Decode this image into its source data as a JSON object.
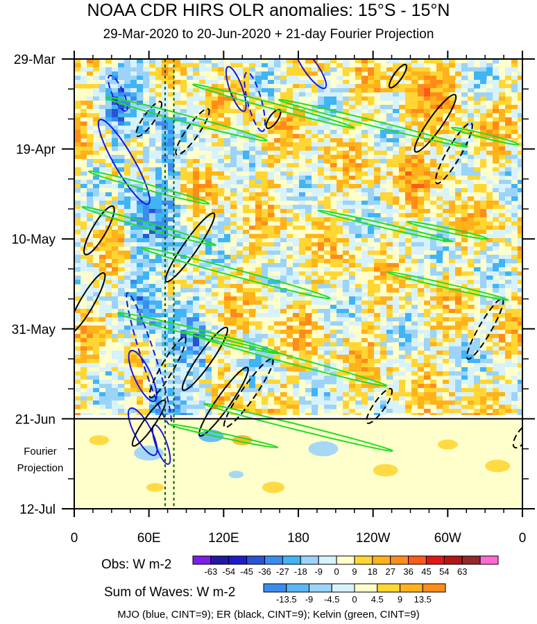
{
  "header": {
    "title": "NOAA CDR HIRS OLR anomalies: 15°S - 15°N",
    "subtitle": "29-Mar-2020 to 20-Jun-2020 + 21-day Fourier Projection"
  },
  "chart_data": {
    "type": "heatmap",
    "title": "NOAA CDR HIRS OLR anomalies: 15°S - 15°N",
    "subtitle": "29-Mar-2020 to 20-Jun-2020 + 21-day Fourier Projection",
    "x_axis": {
      "ticks": [
        {
          "lon": 0,
          "label": "0"
        },
        {
          "lon": 60,
          "label": "60E"
        },
        {
          "lon": 120,
          "label": "120E"
        },
        {
          "lon": 180,
          "label": "180"
        },
        {
          "lon": 240,
          "label": "120W"
        },
        {
          "lon": 300,
          "label": "60W"
        },
        {
          "lon": 360,
          "label": "0"
        }
      ],
      "range": [
        0,
        360
      ]
    },
    "y_axis": {
      "ticks": [
        {
          "day": 0,
          "label": "29-Mar"
        },
        {
          "day": 21,
          "label": "19-Apr"
        },
        {
          "day": 42,
          "label": "10-May"
        },
        {
          "day": 63,
          "label": "31-May"
        },
        {
          "day": 84,
          "label": "21-Jun"
        },
        {
          "day": 105,
          "label": "12-Jul"
        }
      ],
      "range": [
        0,
        105
      ],
      "inverted": true
    },
    "projection_label": [
      "Fourier",
      "Projection"
    ],
    "projection_start_day": 84,
    "reference_lons": [
      73,
      80
    ],
    "obs_colorbar": {
      "label": "Obs: W m-2",
      "levels": [
        "-63",
        "-54",
        "-45",
        "-36",
        "-27",
        "-18",
        "-9",
        "0",
        "9",
        "18",
        "27",
        "36",
        "45",
        "54",
        "63"
      ],
      "colors": [
        "#7a1fe8",
        "#1d18a8",
        "#1c1ccc",
        "#2a52d6",
        "#3c8cf0",
        "#40b4f5",
        "#9cd3f8",
        "#d8f2fb",
        "#ffffcc",
        "#ffd633",
        "#ffb21a",
        "#ff8c1a",
        "#ff5a17",
        "#e01616",
        "#b31515",
        "#922a2a",
        "#ff6ad0"
      ]
    },
    "waves_colorbar": {
      "label": "Sum of Waves: W m-2",
      "levels": [
        "-13.5",
        "-9",
        "-4.5",
        "0",
        "4.5",
        "9",
        "13.5"
      ],
      "colors": [
        "#3c8cf0",
        "#5bb7f6",
        "#9cd3f8",
        "#d8f2fb",
        "#ffffcc",
        "#ffd633",
        "#ffb21a",
        "#ff8c1a"
      ]
    },
    "contours": [
      {
        "wave": "MJO",
        "color": "#1515d8",
        "cint": 9
      },
      {
        "wave": "ER",
        "color": "#000000",
        "cint": 9
      },
      {
        "wave": "Kelvin",
        "color": "#22dd22",
        "cint": 9
      }
    ]
  },
  "footnote": "MJO (blue, CINT=9); ER (black, CINT=9); Kelvin (green, CINT=9)"
}
